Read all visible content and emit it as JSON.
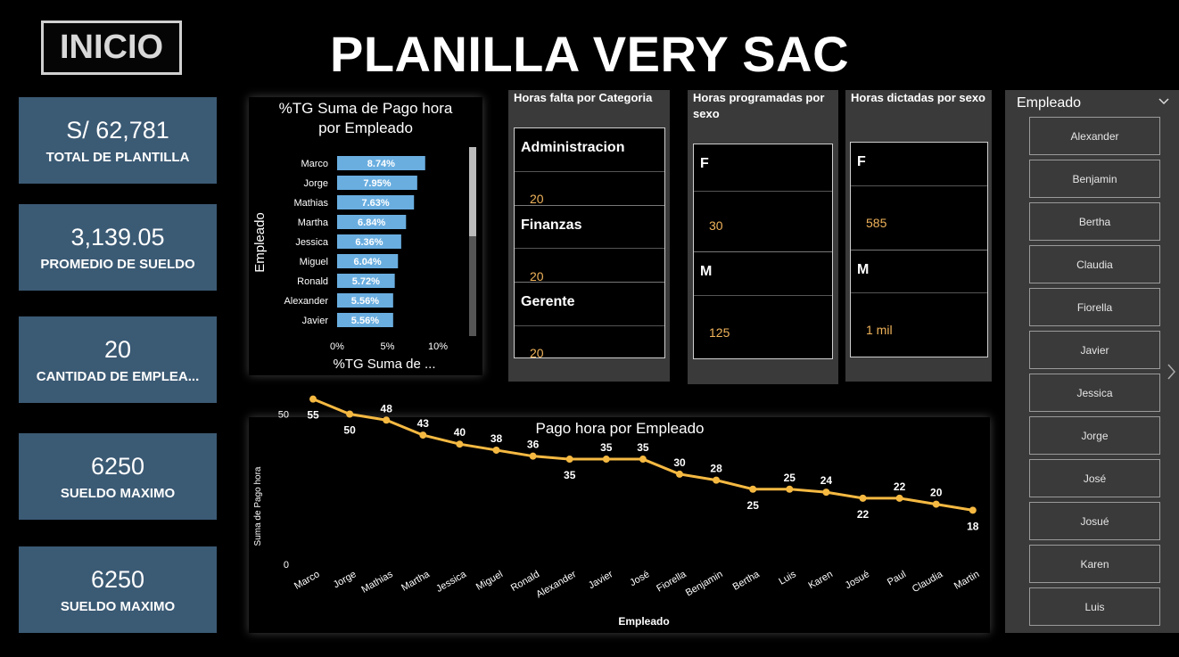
{
  "header": {
    "inicio_label": "INICIO",
    "title": "PLANILLA VERY SAC"
  },
  "kpis": [
    {
      "value": "S/ 62,781",
      "label": "TOTAL DE PLANTILLA"
    },
    {
      "value": "3,139.05",
      "label": "PROMEDIO DE SUELDO"
    },
    {
      "value": "20",
      "label": "CANTIDAD DE EMPLEA..."
    },
    {
      "value": "6250",
      "label": "SUELDO MAXIMO"
    },
    {
      "value": "6250",
      "label": "SUELDO MAXIMO"
    }
  ],
  "cards": {
    "horas_falta": {
      "title": "Horas falta por Categoria",
      "rows": [
        {
          "name": "Administracion",
          "value": "20"
        },
        {
          "name": "Finanzas",
          "value": "20"
        },
        {
          "name": "Gerente",
          "value": "20"
        }
      ]
    },
    "horas_programadas": {
      "title": "Horas programadas por sexo",
      "rows": [
        {
          "name": "F",
          "value": "30"
        },
        {
          "name": "M",
          "value": "125"
        }
      ]
    },
    "horas_dictadas": {
      "title": "Horas dictadas por sexo",
      "rows": [
        {
          "name": "F",
          "value": "585"
        },
        {
          "name": "M",
          "value": "1 mil"
        }
      ]
    }
  },
  "slicer": {
    "header": "Empleado",
    "items": [
      "Alexander",
      "Benjamin",
      "Bertha",
      "Claudia",
      "Fiorella",
      "Javier",
      "Jessica",
      "Jorge",
      "José",
      "Josué",
      "Karen",
      "Luis"
    ]
  },
  "colors": {
    "bar": "#6aaee0",
    "line": "#f5b942",
    "kpi_bg": "#3b5a74",
    "value_text": "#f0b35a"
  },
  "chart_data": [
    {
      "type": "bar",
      "orientation": "horizontal",
      "title": "%TG Suma de Pago hora por Empleado",
      "xlabel": "%TG Suma de ...",
      "ylabel": "Empleado",
      "categories": [
        "Marco",
        "Jorge",
        "Mathias",
        "Martha",
        "Jessica",
        "Miguel",
        "Ronald",
        "Alexander",
        "Javier"
      ],
      "values": [
        8.74,
        7.95,
        7.63,
        6.84,
        6.36,
        6.04,
        5.72,
        5.56,
        5.56
      ],
      "value_labels": [
        "8.74%",
        "7.95%",
        "7.63%",
        "6.84%",
        "6.36%",
        "6.04%",
        "5.72%",
        "5.56%",
        "5.56%"
      ],
      "xlim": [
        0,
        10
      ],
      "xticks": [
        0,
        5,
        10
      ],
      "xtick_labels": [
        "0%",
        "5%",
        "10%"
      ]
    },
    {
      "type": "line",
      "title": "Pago hora por Empleado",
      "xlabel": "Empleado",
      "ylabel": "Suma de Pago hora",
      "categories": [
        "Marco",
        "Jorge",
        "Mathias",
        "Martha",
        "Jessica",
        "Miguel",
        "Ronald",
        "Alexander",
        "Javier",
        "José",
        "Fiorella",
        "Benjamin",
        "Bertha",
        "Luis",
        "Karen",
        "Josué",
        "Paul",
        "Claudia",
        "Martin"
      ],
      "values": [
        55,
        50,
        48,
        43,
        40,
        38,
        36,
        35,
        35,
        35,
        30,
        28,
        25,
        25,
        24,
        22,
        22,
        20,
        18
      ],
      "label_position": [
        "below",
        "below",
        "above",
        "above",
        "above",
        "above",
        "above",
        "below",
        "above",
        "above",
        "above",
        "above",
        "below",
        "above",
        "above",
        "below",
        "above",
        "above",
        "below"
      ],
      "ylim": [
        0,
        60
      ],
      "yticks": [
        0,
        50
      ]
    }
  ]
}
